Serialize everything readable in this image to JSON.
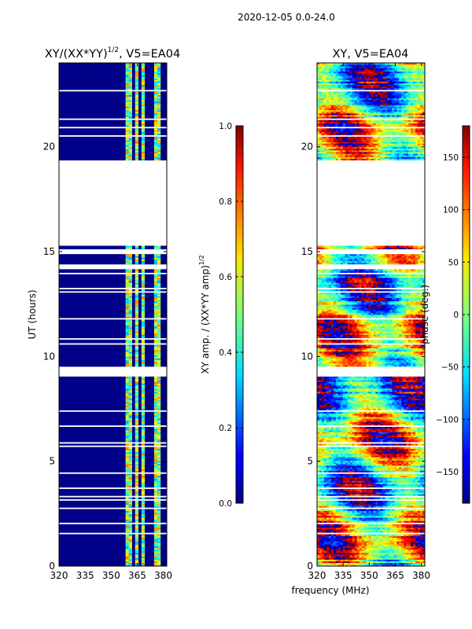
{
  "figure": {
    "suptitle": "2020-12-05 0.0-24.0"
  },
  "chart_data": [
    {
      "type": "heatmap",
      "title_main": "XY/(XX*YY)",
      "title_exp": "1/2",
      "title_rest": ", V5=EA04",
      "xlabel": "",
      "ylabel": "UT (hours)",
      "xlim": [
        320,
        382
      ],
      "ylim": [
        0,
        24
      ],
      "xticks": [
        320,
        335,
        350,
        365,
        380
      ],
      "yticks": [
        0,
        5,
        10,
        15,
        20
      ],
      "yticklabels": [
        "0",
        "5",
        "10",
        "15",
        "20"
      ],
      "colorbar": {
        "label_main": "XY amp. / (XX*YY amp)",
        "label_exp": "1/2",
        "range": [
          0.0,
          1.0
        ],
        "ticks": [
          0.0,
          0.2,
          0.4,
          0.6,
          0.8,
          1.0
        ],
        "ticklabels": [
          "0.0",
          "0.2",
          "0.4",
          "0.6",
          "0.8",
          "1.0"
        ]
      },
      "bands_mhz": [
        [
          358,
          360
        ],
        [
          361,
          362
        ],
        [
          364,
          365.5
        ],
        [
          367,
          369
        ],
        [
          374,
          376
        ],
        [
          377,
          379
        ]
      ],
      "data_gaps_hours": [
        [
          15.4,
          19.3
        ],
        [
          9.0,
          9.5
        ],
        [
          12.0,
          12.2
        ]
      ]
    },
    {
      "type": "heatmap",
      "title": "XY, V5=EA04",
      "xlabel": "frequency (MHz)",
      "ylabel": "",
      "xlim": [
        320,
        382
      ],
      "ylim": [
        0,
        24
      ],
      "xticks": [
        320,
        335,
        350,
        365,
        380
      ],
      "yticks": [
        0,
        5,
        10,
        15,
        20
      ],
      "yticklabels": [
        "0",
        "5",
        "10",
        "15",
        "20"
      ],
      "colorbar": {
        "label": "phase (deg.)",
        "range": [
          -180,
          180
        ],
        "ticks": [
          -150,
          -100,
          -50,
          0,
          50,
          100,
          150
        ],
        "ticklabels": [
          "−150",
          "−100",
          "−50",
          "0",
          "50",
          "100",
          "150"
        ]
      },
      "data_gaps_hours": [
        [
          15.4,
          19.3
        ],
        [
          9.0,
          9.5
        ]
      ]
    }
  ]
}
